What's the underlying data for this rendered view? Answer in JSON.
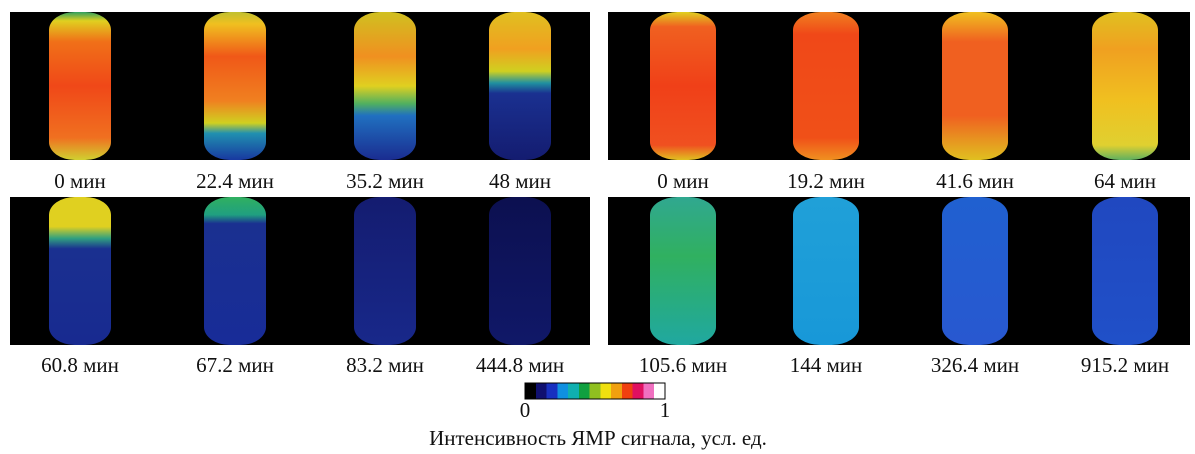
{
  "panels": [
    {
      "rows": [
        {
          "labels": [
            "0 мин",
            "22.4 мин",
            "35.2 мин",
            "48 мин"
          ]
        },
        {
          "labels": [
            "60.8 мин",
            "67.2 мин",
            "83.2 мин",
            "444.8 мин"
          ]
        }
      ]
    },
    {
      "rows": [
        {
          "labels": [
            "0 мин",
            "19.2 мин",
            "41.6 мин",
            "64 мин"
          ]
        },
        {
          "labels": [
            "105.6 мин",
            "144 мин",
            "326.4 мин",
            "915.2 мин"
          ]
        }
      ]
    }
  ],
  "colorbar": {
    "min_label": "0",
    "max_label": "1"
  },
  "caption": "Интенсивность ЯМР сигнала, усл. ед."
}
